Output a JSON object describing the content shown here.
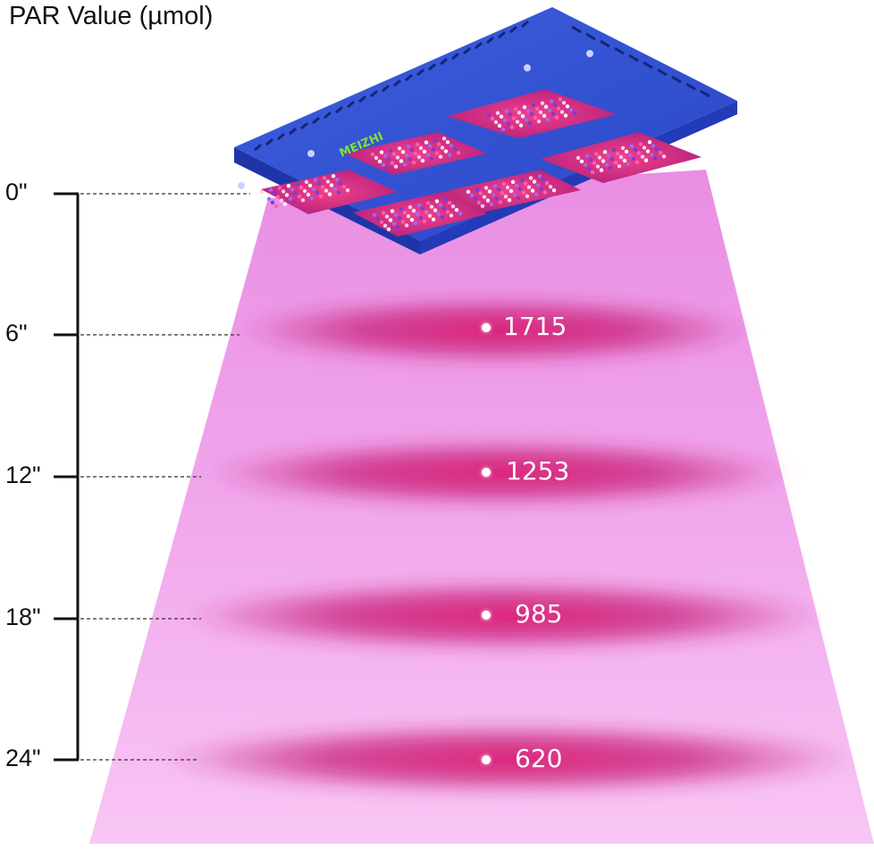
{
  "title": "PAR Value (µmol)",
  "lamp": {
    "brand": "MEIZHI",
    "body_color": "#2f4fd0",
    "edge_color": "#1e35a8",
    "beam_color": "#f4a6ec"
  },
  "distance_ticks": [
    {
      "label": "0\""
    },
    {
      "label": "6\""
    },
    {
      "label": "12\""
    },
    {
      "label": "18\""
    },
    {
      "label": "24\""
    }
  ],
  "measurements": [
    {
      "distance": "6\"",
      "value": "1715"
    },
    {
      "distance": "12\"",
      "value": "1253"
    },
    {
      "distance": "18\"",
      "value": "985"
    },
    {
      "distance": "24\"",
      "value": "620"
    }
  ]
}
